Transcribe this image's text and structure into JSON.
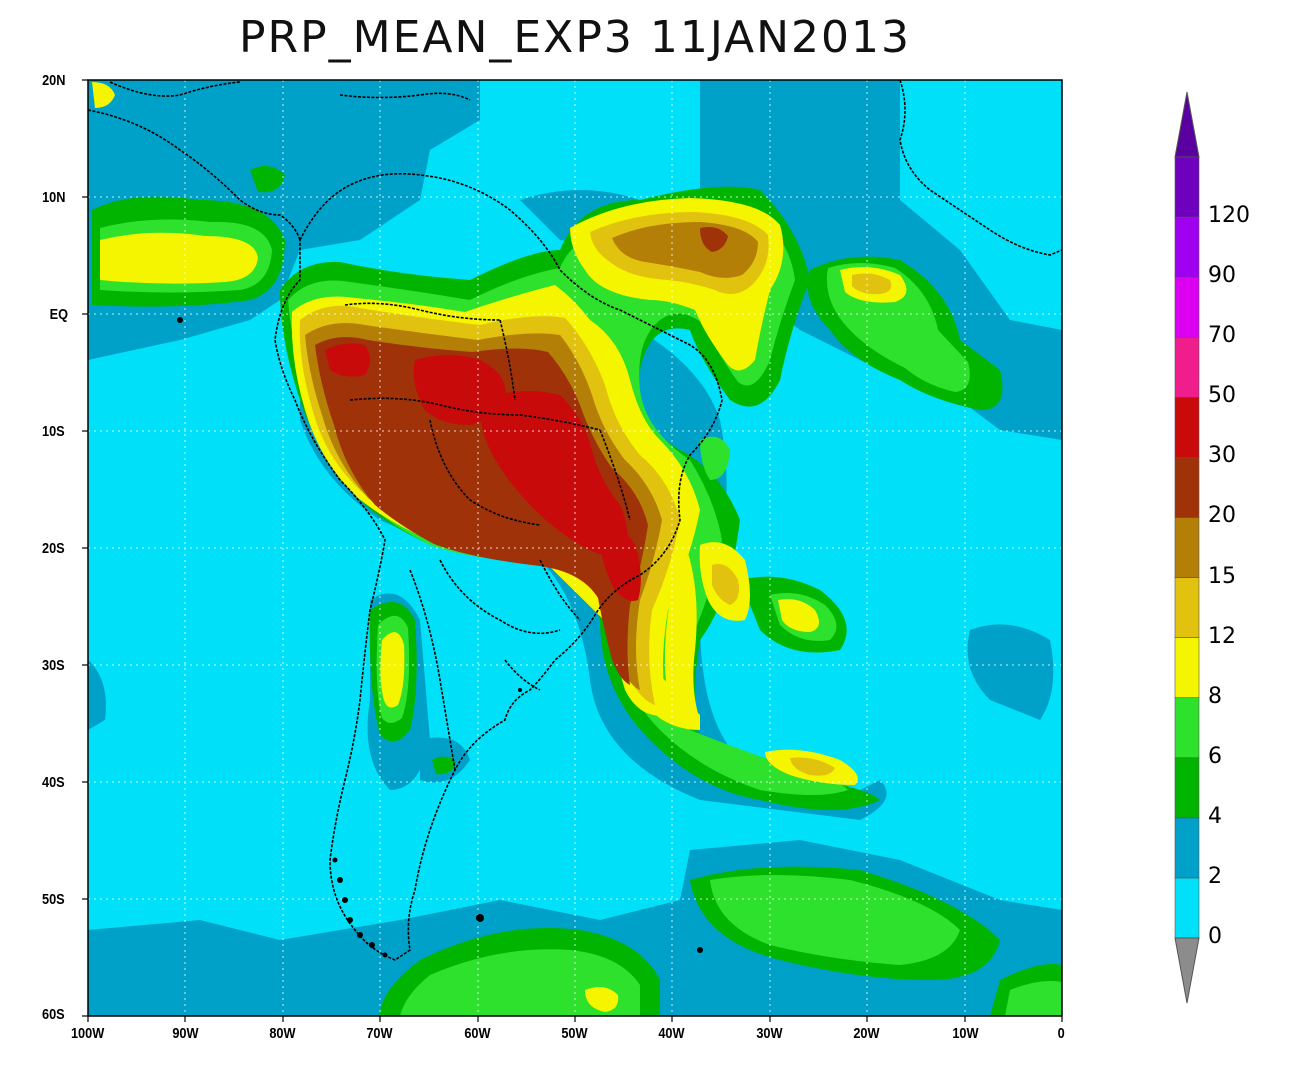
{
  "title": "PRP_MEAN_EXP3 11JAN2013",
  "map": {
    "lat_labels": [
      "20N",
      "10N",
      "EQ",
      "10S",
      "20S",
      "30S",
      "40S",
      "50S",
      "60S"
    ],
    "lon_labels": [
      "100W",
      "90W",
      "80W",
      "70W",
      "60W",
      "50W",
      "40W",
      "30W",
      "20W",
      "10W",
      "0"
    ],
    "lat_range": [
      -60,
      20
    ],
    "lon_range": [
      -100,
      0
    ],
    "grid": "dotted, every 10 degrees",
    "field": "precipitation mean, shaded contours"
  },
  "colorbar": {
    "levels": [
      "0",
      "2",
      "4",
      "6",
      "8",
      "12",
      "15",
      "20",
      "30",
      "50",
      "70",
      "90",
      "120"
    ],
    "colors": [
      "#00e1f9",
      "#00a1c9",
      "#00b400",
      "#2de12d",
      "#f5f500",
      "#e1c30f",
      "#b47f07",
      "#a0320a",
      "#c80a0a",
      "#f01e8c",
      "#dc00f0",
      "#a000f0",
      "#6e00be"
    ],
    "under_color": "#8c8c8c",
    "over_color": "#5a00a0"
  }
}
